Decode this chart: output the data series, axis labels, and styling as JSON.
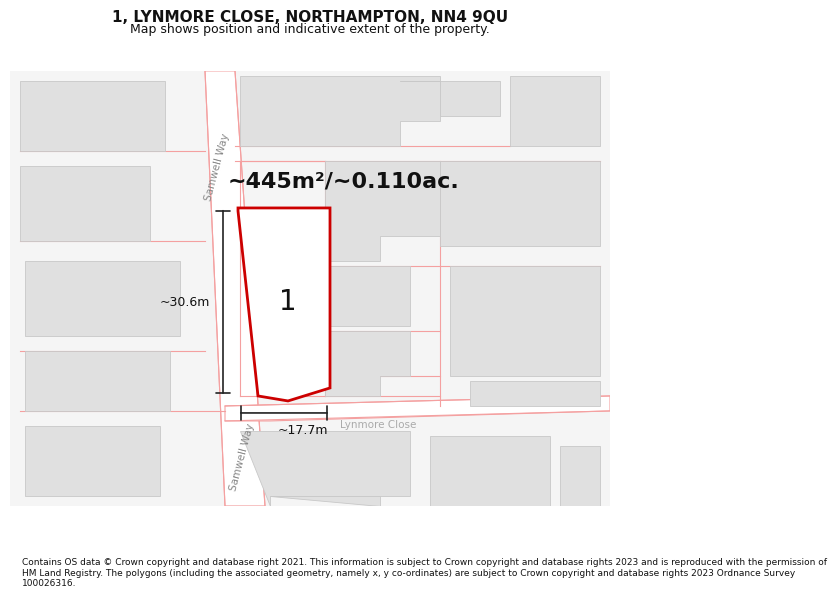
{
  "title": "1, LYNMORE CLOSE, NORTHAMPTON, NN4 9QU",
  "subtitle": "Map shows position and indicative extent of the property.",
  "footer": "Contains OS data © Crown copyright and database right 2021. This information is subject to Crown copyright and database rights 2023 and is reproduced with the permission of\nHM Land Registry. The polygons (including the associated geometry, namely x, y co-ordinates) are subject to Crown copyright and database rights 2023 Ordnance Survey\n100026316.",
  "area_label": "~445m²/~0.110ac.",
  "dim_width": "~17.7m",
  "dim_height": "~30.6m",
  "label_number": "1",
  "road1_label": "Samwell Way",
  "road2_label": "Samwell Way",
  "road3_label": "Lynmore Close",
  "bg_color": "#f5f5f5",
  "bld_fill": "#e0e0e0",
  "bld_edge": "#c8c8c8",
  "road_line": "#f4a0a0",
  "plot_edge": "#cc0000",
  "plot_fill": "#ffffff",
  "dim_color": "#222222",
  "title_fontsize": 11,
  "subtitle_fontsize": 9,
  "area_fontsize": 16,
  "road_fontsize": 7.5,
  "dim_fontsize": 9,
  "label_fontsize": 20,
  "footer_fontsize": 6.5
}
